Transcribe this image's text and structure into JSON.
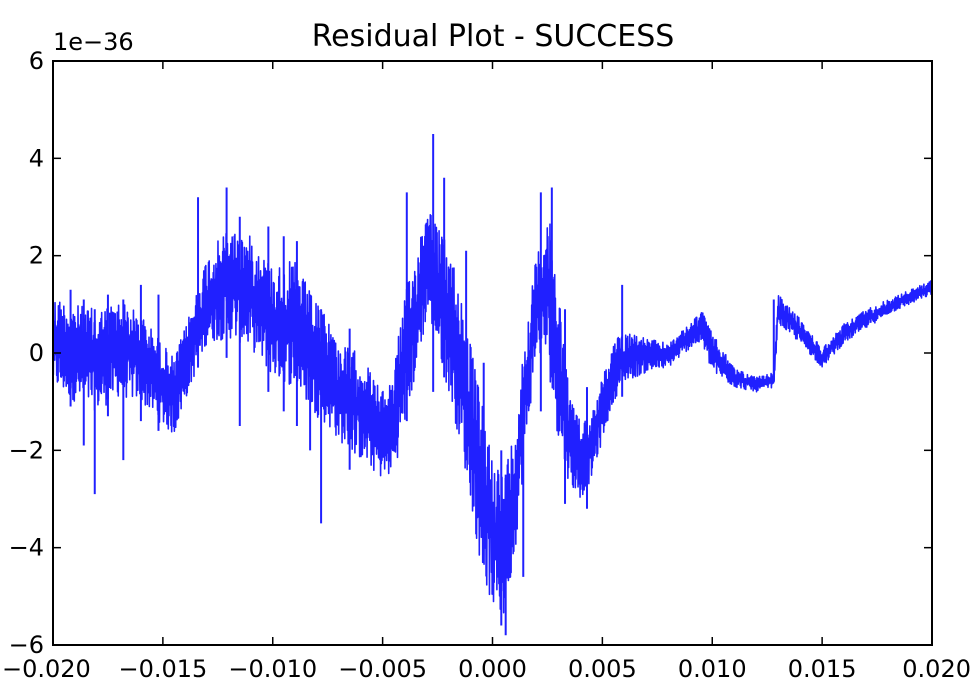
{
  "chart_data": {
    "type": "line",
    "title": "Residual Plot - SUCCESS",
    "xlabel": "",
    "ylabel": "",
    "y_offset_text": "1e−36",
    "xlim": [
      -0.02,
      0.02
    ],
    "ylim": [
      -6,
      6
    ],
    "grid": false,
    "x_ticks": [
      -0.02,
      -0.015,
      -0.01,
      -0.005,
      0.0,
      0.005,
      0.01,
      0.015,
      0.02
    ],
    "x_tick_labels": [
      "−0.020",
      "−0.015",
      "−0.010",
      "−0.005",
      "0.000",
      "0.005",
      "0.010",
      "0.015",
      "0.020"
    ],
    "y_ticks": [
      -6,
      -4,
      -2,
      0,
      2,
      4,
      6
    ],
    "y_tick_labels": [
      "−6",
      "−4",
      "−2",
      "0",
      "2",
      "4",
      "6"
    ],
    "series": [
      {
        "color": "#2020ff",
        "band": {
          "x": [
            -0.02,
            -0.019,
            -0.018,
            -0.017,
            -0.016,
            -0.015,
            -0.0145,
            -0.014,
            -0.013,
            -0.012,
            -0.011,
            -0.01,
            -0.009,
            -0.008,
            -0.0075,
            -0.007,
            -0.006,
            -0.005,
            -0.0045,
            -0.004,
            -0.0035,
            -0.003,
            -0.0028,
            -0.0025,
            -0.002,
            -0.0015,
            -0.001,
            -0.0005,
            0.0,
            0.0005,
            0.001,
            0.0015,
            0.002,
            0.0025,
            0.003,
            0.0035,
            0.004,
            0.0045,
            0.005,
            0.0055,
            0.006,
            0.007,
            0.008,
            0.009,
            0.0095,
            0.01,
            0.011,
            0.012,
            0.0128,
            0.013,
            0.014,
            0.015,
            0.016,
            0.017,
            0.018,
            0.019,
            0.02
          ],
          "upper": [
            1.2,
            1.0,
            0.9,
            1.1,
            0.8,
            0.2,
            -0.1,
            0.5,
            2.0,
            2.6,
            2.4,
            1.8,
            1.9,
            1.0,
            0.8,
            0.2,
            0.0,
            -0.8,
            -0.3,
            1.2,
            2.0,
            3.2,
            3.0,
            2.6,
            2.2,
            1.5,
            0.2,
            -1.0,
            -2.0,
            -2.5,
            -1.5,
            0.5,
            2.0,
            3.0,
            1.5,
            -0.8,
            -1.4,
            -1.2,
            -0.5,
            0.2,
            0.5,
            0.3,
            0.2,
            0.6,
            0.9,
            0.4,
            -0.3,
            -0.5,
            -0.4,
            1.2,
            0.7,
            0.1,
            0.6,
            0.9,
            1.1,
            1.3,
            1.5
          ],
          "lower": [
            -0.7,
            -1.0,
            -1.2,
            -0.9,
            -1.0,
            -1.5,
            -1.7,
            -1.0,
            0.2,
            0.3,
            0.1,
            -0.5,
            -0.7,
            -1.3,
            -1.5,
            -1.8,
            -2.2,
            -2.6,
            -2.5,
            -1.5,
            -0.5,
            0.7,
            0.6,
            0.1,
            -0.8,
            -1.8,
            -3.0,
            -4.5,
            -5.2,
            -5.5,
            -4.2,
            -2.0,
            0.0,
            -0.2,
            -1.8,
            -2.7,
            -3.0,
            -2.6,
            -1.8,
            -1.0,
            -0.6,
            -0.4,
            -0.3,
            0.1,
            0.2,
            -0.4,
            -0.7,
            -0.8,
            -0.7,
            0.6,
            0.2,
            -0.3,
            0.2,
            0.5,
            0.8,
            1.0,
            1.2
          ]
        },
        "spikes": [
          {
            "x": -0.0192,
            "lo": -1.1,
            "hi": 1.3
          },
          {
            "x": -0.0186,
            "lo": -1.9,
            "hi": 1.1
          },
          {
            "x": -0.0181,
            "lo": -2.9,
            "hi": 0.9
          },
          {
            "x": -0.0175,
            "lo": -1.3,
            "hi": 1.2
          },
          {
            "x": -0.0168,
            "lo": -2.2,
            "hi": 1.1
          },
          {
            "x": -0.016,
            "lo": -1.4,
            "hi": 1.4
          },
          {
            "x": -0.0152,
            "lo": -1.6,
            "hi": 1.2
          },
          {
            "x": -0.0134,
            "lo": -0.3,
            "hi": 3.2
          },
          {
            "x": -0.0121,
            "lo": -0.1,
            "hi": 3.4
          },
          {
            "x": -0.0115,
            "lo": -1.5,
            "hi": 2.8
          },
          {
            "x": -0.0102,
            "lo": -0.8,
            "hi": 2.6
          },
          {
            "x": -0.0095,
            "lo": -1.2,
            "hi": 2.4
          },
          {
            "x": -0.0089,
            "lo": -1.5,
            "hi": 2.3
          },
          {
            "x": -0.0083,
            "lo": -2.0,
            "hi": 1.2
          },
          {
            "x": -0.0078,
            "lo": -3.5,
            "hi": 0.9
          },
          {
            "x": -0.0065,
            "lo": -2.4,
            "hi": 0.5
          },
          {
            "x": -0.0039,
            "lo": -1.4,
            "hi": 3.3
          },
          {
            "x": -0.0027,
            "lo": -0.8,
            "hi": 4.5
          },
          {
            "x": -0.0022,
            "lo": -0.5,
            "hi": 3.6
          },
          {
            "x": -0.0012,
            "lo": -1.6,
            "hi": 2.1
          },
          {
            "x": -0.0004,
            "lo": -3.0,
            "hi": -0.2
          },
          {
            "x": 0.0004,
            "lo": -5.6,
            "hi": -2.0
          },
          {
            "x": 0.0006,
            "lo": -5.8,
            "hi": -2.5
          },
          {
            "x": 0.0014,
            "lo": -4.6,
            "hi": -0.5
          },
          {
            "x": 0.0022,
            "lo": -1.2,
            "hi": 3.3
          },
          {
            "x": 0.0027,
            "lo": -0.5,
            "hi": 3.4
          },
          {
            "x": 0.0033,
            "lo": -3.1,
            "hi": 0.9
          },
          {
            "x": 0.0043,
            "lo": -3.2,
            "hi": -0.7
          },
          {
            "x": 0.0059,
            "lo": -0.9,
            "hi": 1.4
          },
          {
            "x": 0.0128,
            "lo": -0.6,
            "hi": 1.1
          }
        ]
      }
    ]
  }
}
